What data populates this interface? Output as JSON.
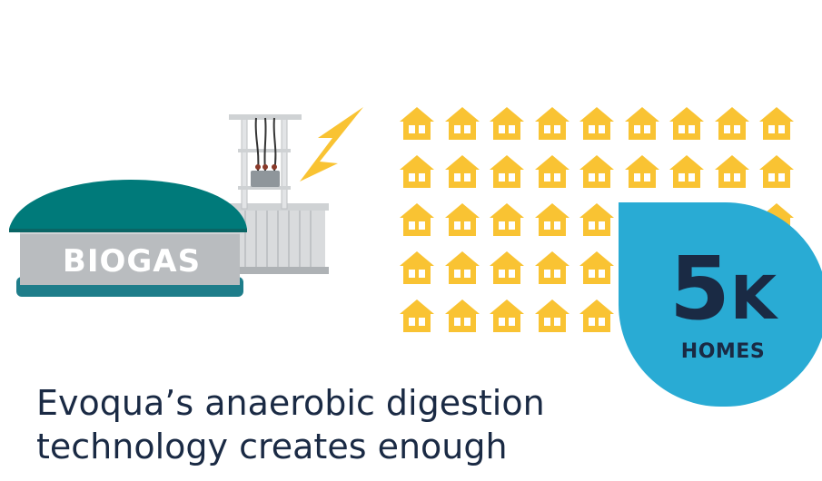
{
  "digester": {
    "label": "BIOGAS"
  },
  "homes": {
    "rows": 5,
    "cols": 9,
    "icon": "house-icon",
    "color": "#f9c333"
  },
  "badge": {
    "number": "5",
    "suffix": "K",
    "caption": "HOMES",
    "color": "#29abd4"
  },
  "description": {
    "line1": "Evoqua’s anaerobic digestion",
    "line2": "technology creates enough"
  },
  "colors": {
    "lightning": "#f9c333",
    "dome": "#007a7a",
    "tank": "#b9bcbf",
    "text": "#1a2a44"
  }
}
